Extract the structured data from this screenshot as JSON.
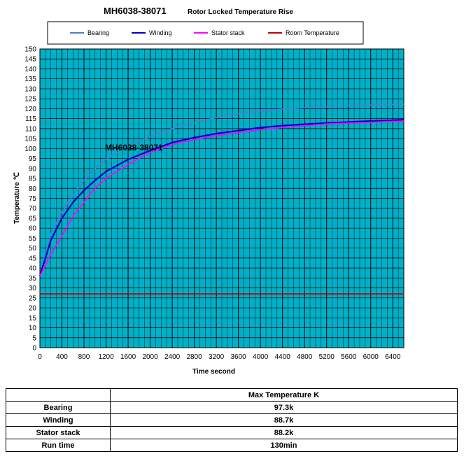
{
  "chart_data": {
    "type": "line",
    "title": "MH6038-38071",
    "subtitle": "Rotor Locked Temperature Rise",
    "annotation": "MH6038-38071",
    "xlabel": "Time second",
    "ylabel": "Temperature ℃",
    "xlim": [
      0,
      6600
    ],
    "ylim": [
      0,
      150
    ],
    "xticks": [
      "0",
      "400",
      "800",
      "1200",
      "1600",
      "2000",
      "2400",
      "2800",
      "3200",
      "3600",
      "4000",
      "4400",
      "4800",
      "5200",
      "5600",
      "6000",
      "6400"
    ],
    "yticks": [
      "0",
      "5",
      "10",
      "15",
      "20",
      "25",
      "30",
      "35",
      "40",
      "45",
      "50",
      "55",
      "60",
      "65",
      "70",
      "75",
      "80",
      "85",
      "90",
      "95",
      "100",
      "105",
      "110",
      "115",
      "120",
      "125",
      "130",
      "135",
      "140",
      "145",
      "150"
    ],
    "grid": true,
    "plot_background": "#00B0C8",
    "legend_position": "top",
    "series": [
      {
        "name": "Bearing",
        "color": "#4A7FD0",
        "x": [
          0,
          200,
          400,
          600,
          800,
          1000,
          1200,
          1600,
          2000,
          2400,
          2800,
          3200,
          3600,
          4000,
          4400,
          4800,
          5200,
          5600,
          6000,
          6400,
          6600
        ],
        "values": [
          36,
          57,
          68,
          77,
          84,
          90,
          94.5,
          101.5,
          106,
          110,
          113,
          115.5,
          117.5,
          118.8,
          119.8,
          120.5,
          121,
          121.5,
          121.8,
          122.2,
          122.3
        ]
      },
      {
        "name": "Winding",
        "color": "#0000CC",
        "x": [
          0,
          200,
          400,
          600,
          800,
          1000,
          1200,
          1600,
          2000,
          2400,
          2800,
          3200,
          3600,
          4000,
          4400,
          4800,
          5200,
          5600,
          6000,
          6400,
          6600
        ],
        "values": [
          36,
          54,
          65,
          73,
          79,
          84,
          88.5,
          94.5,
          99,
          103,
          105.5,
          107.5,
          109,
          110.5,
          111.5,
          112.2,
          112.8,
          113.3,
          113.8,
          114.2,
          114.5
        ]
      },
      {
        "name": "Stator stack",
        "color": "#FF00FF",
        "x": [
          0,
          200,
          400,
          600,
          800,
          1000,
          1200,
          1600,
          2000,
          2400,
          2800,
          3200,
          3600,
          4000,
          4400,
          4800,
          5200,
          5600,
          6000,
          6400,
          6600
        ],
        "values": [
          36,
          47,
          56,
          66,
          73,
          80,
          85,
          92,
          98,
          102,
          104.5,
          106.5,
          108,
          109.5,
          110.5,
          111.5,
          112.3,
          112.8,
          113.2,
          113.6,
          113.8
        ]
      },
      {
        "name": "Room Temperature",
        "color": "#C00000",
        "x": [
          0,
          800,
          1600,
          2400,
          3200,
          4000,
          4800,
          5600,
          6600
        ],
        "values": [
          27,
          27,
          27,
          27,
          27,
          27,
          27,
          27,
          27
        ]
      }
    ]
  },
  "summary_table": {
    "header": "Max Temperature K",
    "rows": [
      {
        "label": "Bearing",
        "value": "97.3k"
      },
      {
        "label": "Winding",
        "value": "88.7k"
      },
      {
        "label": "Stator stack",
        "value": "88.2k"
      },
      {
        "label": "Run time",
        "value": "130min"
      }
    ]
  }
}
